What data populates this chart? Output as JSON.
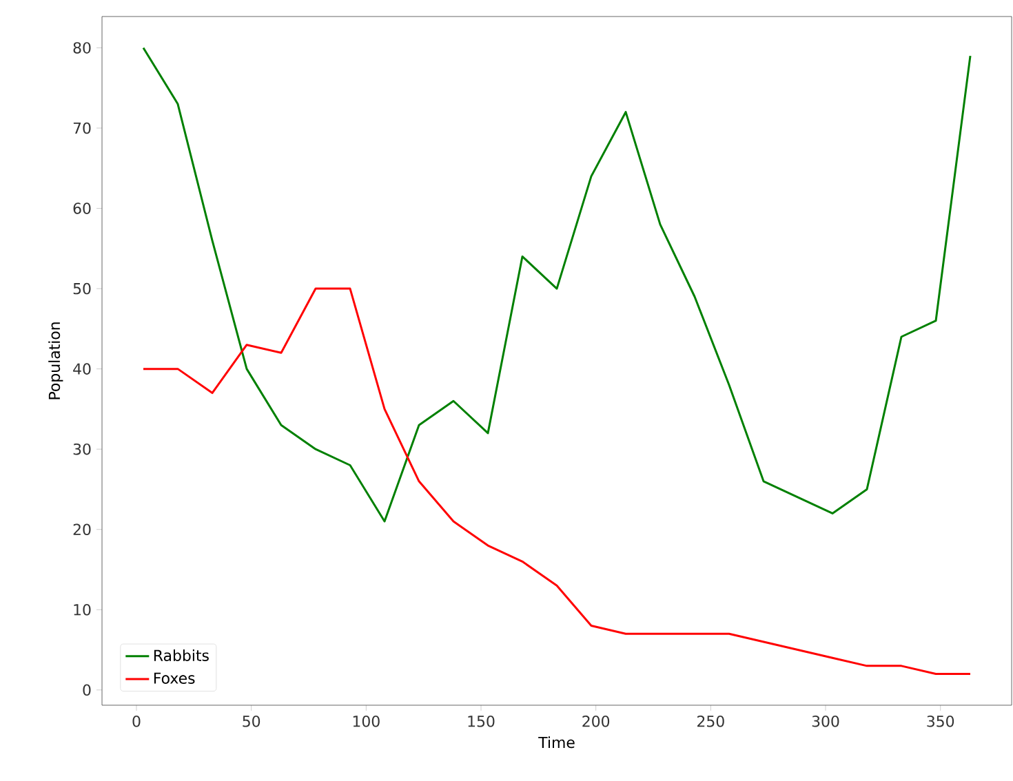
{
  "chart_data": {
    "type": "line",
    "xlabel": "Time",
    "ylabel": "Population",
    "x": [
      3,
      18,
      33,
      48,
      63,
      78,
      93,
      108,
      123,
      138,
      153,
      168,
      183,
      198,
      213,
      228,
      243,
      258,
      273,
      288,
      303,
      318,
      333,
      348,
      363
    ],
    "series": [
      {
        "name": "Rabbits",
        "color": "#008000",
        "values": [
          80,
          73,
          56,
          40,
          33,
          30,
          28,
          21,
          33,
          36,
          32,
          54,
          50,
          64,
          72,
          58,
          49,
          38,
          26,
          24,
          22,
          25,
          44,
          46,
          79
        ]
      },
      {
        "name": "Foxes",
        "color": "#ff0000",
        "values": [
          40,
          40,
          37,
          43,
          42,
          50,
          50,
          35,
          26,
          21,
          18,
          16,
          13,
          8,
          7,
          7,
          7,
          7,
          6,
          5,
          4,
          3,
          3,
          2,
          2
        ]
      }
    ],
    "xlim": [
      -15,
      381
    ],
    "ylim": [
      -1.9,
      83.9
    ],
    "xticks": [
      0,
      50,
      100,
      150,
      200,
      250,
      300,
      350
    ],
    "yticks": [
      0,
      10,
      20,
      30,
      40,
      50,
      60,
      70,
      80
    ],
    "legend": "bottom left",
    "grid": false,
    "marker": "none",
    "line_style": "solid"
  }
}
